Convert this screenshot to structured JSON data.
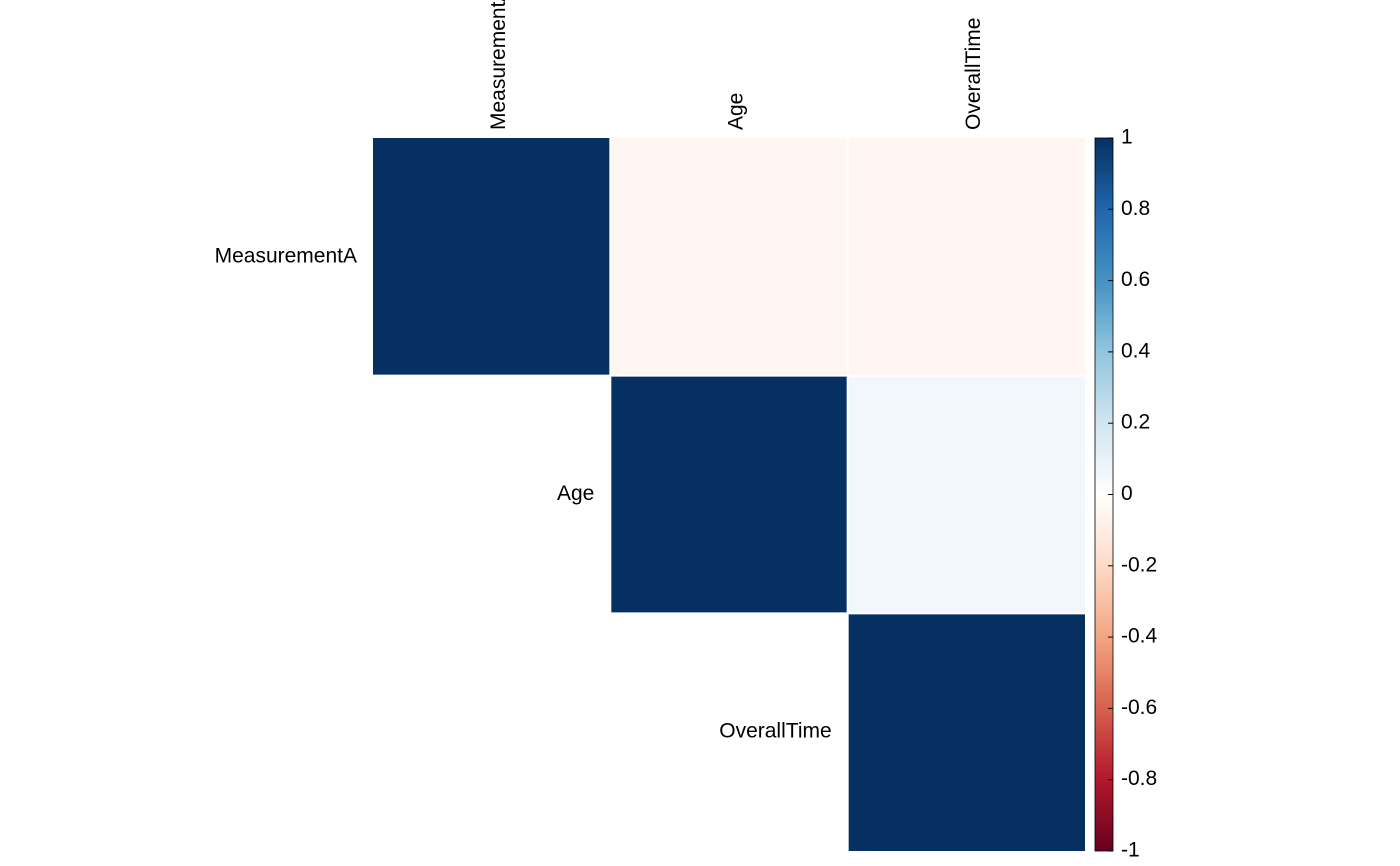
{
  "chart_data": {
    "type": "heatmap",
    "categories": [
      "MeasurementA",
      "Age",
      "OverallTime"
    ],
    "values": [
      [
        1,
        -0.05,
        -0.05
      ],
      [
        null,
        1,
        0.06
      ],
      [
        null,
        null,
        1
      ]
    ],
    "colorscale": [
      "#67001F",
      "#B2182B",
      "#D6604D",
      "#F4A582",
      "#FDDBC7",
      "#FFFFFF",
      "#D1E5F0",
      "#92C5DE",
      "#4393C3",
      "#2166AC",
      "#053061"
    ],
    "zlim": [
      -1,
      1
    ],
    "zticks": [
      1,
      0.8,
      0.6,
      0.4,
      0.2,
      0,
      -0.2,
      -0.4,
      -0.6,
      -0.8,
      -1
    ]
  }
}
